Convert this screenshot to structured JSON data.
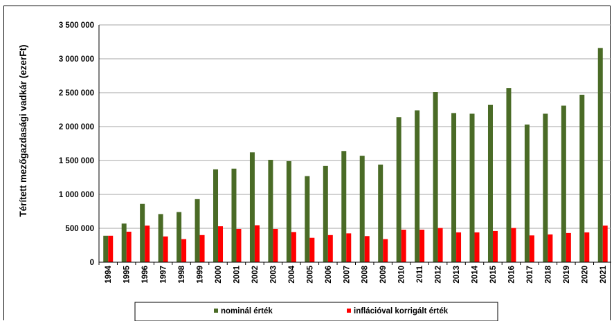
{
  "chart_data": {
    "type": "bar",
    "ylabel": "Térített mezőgazdasági vadkár (ezerFt)",
    "xlabel": "",
    "title": "",
    "ylim": [
      0,
      3500000
    ],
    "yticks": [
      0,
      500000,
      1000000,
      1500000,
      2000000,
      2500000,
      3000000,
      3500000
    ],
    "ytick_labels": [
      "0",
      "500 000",
      "1 000 000",
      "1 500 000",
      "2 000 000",
      "2 500 000",
      "3 000 000",
      "3 500 000"
    ],
    "grid": true,
    "legend_position": "bottom",
    "categories": [
      "1994",
      "1995",
      "1996",
      "1997",
      "1998",
      "1999",
      "2000",
      "2001",
      "2002",
      "2003",
      "2004",
      "2005",
      "2006",
      "2007",
      "2008",
      "2009",
      "2010",
      "2011",
      "2012",
      "2013",
      "2014",
      "2015",
      "2016",
      "2017",
      "2018",
      "2019",
      "2020",
      "2021"
    ],
    "series": [
      {
        "name": "nominál érték",
        "color": "#4a6b26",
        "values": [
          390000,
          570000,
          860000,
          710000,
          740000,
          930000,
          1370000,
          1380000,
          1620000,
          1510000,
          1490000,
          1270000,
          1420000,
          1640000,
          1570000,
          1440000,
          2140000,
          2240000,
          2510000,
          2200000,
          2190000,
          2320000,
          2570000,
          2030000,
          2190000,
          2310000,
          2470000,
          3160000
        ]
      },
      {
        "name": "inflációval korrigált érték",
        "color": "#ff0000",
        "values": [
          390000,
          450000,
          540000,
          380000,
          340000,
          400000,
          530000,
          490000,
          545000,
          490000,
          445000,
          360000,
          400000,
          425000,
          385000,
          340000,
          480000,
          480000,
          505000,
          440000,
          440000,
          460000,
          505000,
          395000,
          410000,
          430000,
          440000,
          540000
        ]
      }
    ]
  }
}
